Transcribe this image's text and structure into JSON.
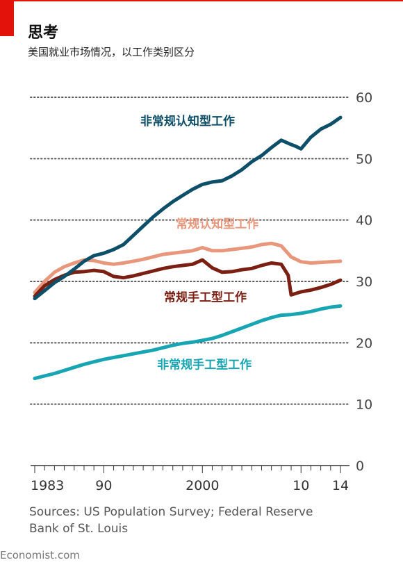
{
  "title": "思考",
  "subtitle": "美国就业市场情况，以工作类别区分",
  "source": {
    "line1": "Sources: US Population Survey; Federal Reserve",
    "line2": "Bank of St. Louis"
  },
  "credit": "Economist.com",
  "colors": {
    "accent_red": "#e3120b",
    "non_routine_cognitive": "#0d4f68",
    "routine_cognitive": "#e8977c",
    "routine_manual": "#7a1f12",
    "non_routine_manual": "#17a5b3",
    "grid": "#555555",
    "text": "#333333"
  },
  "chart_data": {
    "type": "line",
    "ylim": [
      0,
      60
    ],
    "xlim": [
      1983,
      2014
    ],
    "y_ticks": [
      0,
      10,
      20,
      30,
      40,
      50,
      60
    ],
    "x_tick_labels": [
      {
        "x": 1983,
        "label": "1983"
      },
      {
        "x": 1990,
        "label": "90"
      },
      {
        "x": 2000,
        "label": "2000"
      },
      {
        "x": 2010,
        "label": "10"
      },
      {
        "x": 2014,
        "label": "14"
      }
    ],
    "grid": true,
    "series": [
      {
        "name": "非常规认知型工作",
        "color_key": "non_routine_cognitive",
        "x": [
          1983,
          1984,
          1985,
          1986,
          1987,
          1988,
          1989,
          1990,
          1991,
          1992,
          1993,
          1994,
          1995,
          1996,
          1997,
          1998,
          1999,
          2000,
          2001,
          2002,
          2003,
          2004,
          2005,
          2006,
          2007,
          2008,
          2009,
          2009.5,
          2010,
          2011,
          2012,
          2013,
          2014
        ],
        "y": [
          27.2,
          28.5,
          29.8,
          30.8,
          32.0,
          33.3,
          34.2,
          34.6,
          35.2,
          36.0,
          37.5,
          39.0,
          40.5,
          41.8,
          43.0,
          44.0,
          45.0,
          45.8,
          46.2,
          46.4,
          47.2,
          48.2,
          49.5,
          50.5,
          51.8,
          53.0,
          52.3,
          52.0,
          51.6,
          53.5,
          54.8,
          55.6,
          56.7
        ]
      },
      {
        "name": "常规认知型工作",
        "color_key": "routine_cognitive",
        "x": [
          1983,
          1984,
          1985,
          1986,
          1987,
          1988,
          1989,
          1990,
          1991,
          1992,
          1993,
          1994,
          1995,
          1996,
          1997,
          1998,
          1999,
          2000,
          2001,
          2002,
          2003,
          2004,
          2005,
          2006,
          2007,
          2008,
          2009,
          2010,
          2011,
          2012,
          2013,
          2014
        ],
        "y": [
          28.2,
          30.0,
          31.5,
          32.4,
          33.0,
          33.5,
          33.4,
          33.0,
          32.8,
          33.0,
          33.3,
          33.6,
          34.0,
          34.4,
          34.6,
          34.8,
          35.0,
          35.5,
          35.0,
          35.0,
          35.2,
          35.4,
          35.6,
          36.0,
          36.2,
          35.8,
          34.0,
          33.2,
          33.0,
          33.1,
          33.2,
          33.3
        ]
      },
      {
        "name": "常规手工型工作",
        "color_key": "routine_manual",
        "x": [
          1983,
          1984,
          1985,
          1986,
          1987,
          1988,
          1989,
          1990,
          1991,
          1992,
          1993,
          1994,
          1995,
          1996,
          1997,
          1998,
          1999,
          2000,
          2001,
          2002,
          2003,
          2004,
          2005,
          2006,
          2007,
          2008,
          2008.7,
          2009,
          2010,
          2011,
          2012,
          2013,
          2014
        ],
        "y": [
          27.6,
          29.3,
          30.3,
          31.0,
          31.5,
          31.6,
          31.8,
          31.6,
          30.8,
          30.6,
          30.9,
          31.3,
          31.7,
          32.1,
          32.4,
          32.6,
          32.8,
          33.5,
          32.2,
          31.5,
          31.6,
          31.9,
          32.1,
          32.6,
          33.0,
          32.8,
          31.0,
          27.8,
          28.3,
          28.6,
          29.0,
          29.5,
          30.2
        ]
      },
      {
        "name": "非常规手工型工作",
        "color_key": "non_routine_manual",
        "x": [
          1983,
          1984,
          1985,
          1986,
          1987,
          1988,
          1989,
          1990,
          1991,
          1992,
          1993,
          1994,
          1995,
          1996,
          1997,
          1998,
          1999,
          2000,
          2001,
          2002,
          2003,
          2004,
          2005,
          2006,
          2007,
          2008,
          2009,
          2010,
          2011,
          2012,
          2013,
          2014
        ],
        "y": [
          14.2,
          14.6,
          15.0,
          15.5,
          16.0,
          16.5,
          16.9,
          17.3,
          17.6,
          17.9,
          18.2,
          18.5,
          18.8,
          19.2,
          19.6,
          19.9,
          20.1,
          20.4,
          20.7,
          21.2,
          21.8,
          22.4,
          23.0,
          23.6,
          24.1,
          24.5,
          24.6,
          24.8,
          25.1,
          25.5,
          25.8,
          26.0
        ]
      }
    ],
    "annotations": [
      {
        "text": "非常规认知型工作",
        "color_key": "non_routine_cognitive",
        "x": 1998.5,
        "y": 55.5
      },
      {
        "text": "常规认知型工作",
        "color_key": "routine_cognitive",
        "x": 2001.5,
        "y": 38.7
      },
      {
        "text": "常规手工型工作",
        "color_key": "routine_manual",
        "x": 2000.3,
        "y": 26.8
      },
      {
        "text": "非常规手工型工作",
        "color_key": "non_routine_manual",
        "x": 2000.2,
        "y": 15.8
      }
    ]
  }
}
